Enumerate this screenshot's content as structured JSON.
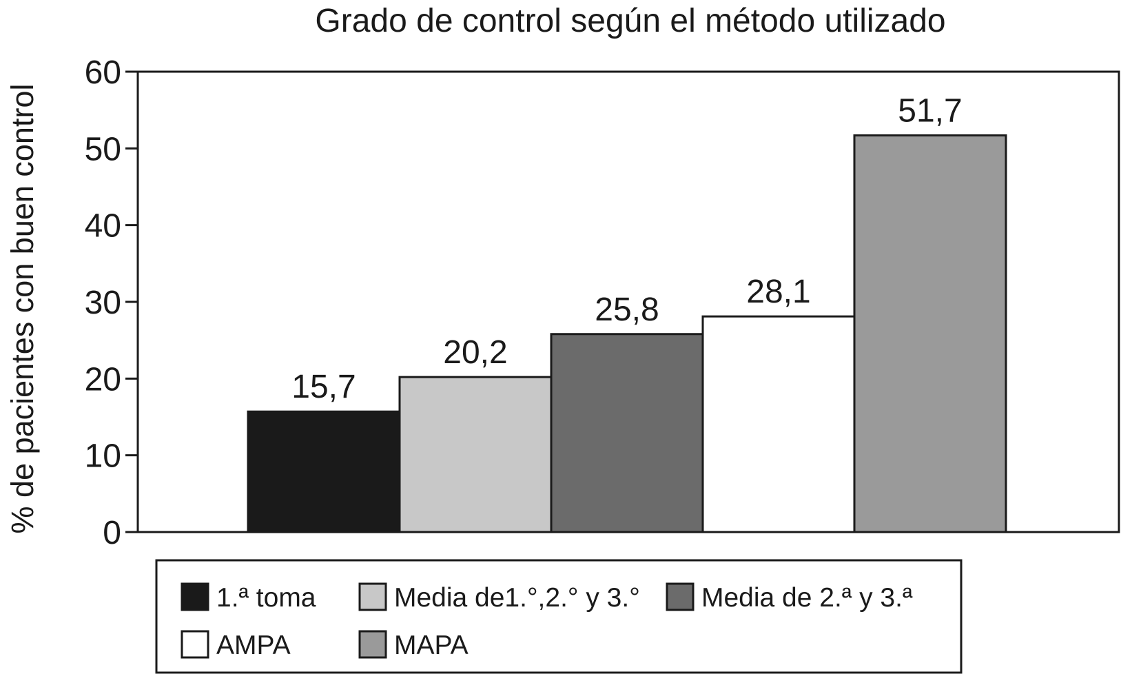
{
  "chart_data": {
    "type": "bar",
    "title": "Grado de control según el método utilizado",
    "xlabel": "",
    "ylabel": "% de pacientes con buen control",
    "ylim": [
      0,
      60
    ],
    "yticks": [
      "0",
      "10",
      "20",
      "30",
      "40",
      "50",
      "60"
    ],
    "grid": false,
    "legend_position": "bottom",
    "series": [
      {
        "name": "1.ª toma",
        "value": 15.7,
        "label": "15,7",
        "color": "#1a1a1a"
      },
      {
        "name": "Media de1.°,2.° y 3.°",
        "value": 20.2,
        "label": "20,2",
        "color": "#c8c8c8"
      },
      {
        "name": "Media de 2.ª y 3.ª",
        "value": 25.8,
        "label": "25,8",
        "color": "#6b6b6b"
      },
      {
        "name": "AMPA",
        "value": 28.1,
        "label": "28,1",
        "color": "#ffffff"
      },
      {
        "name": "MAPA",
        "value": 51.7,
        "label": "51,7",
        "color": "#9a9a9a"
      }
    ]
  }
}
